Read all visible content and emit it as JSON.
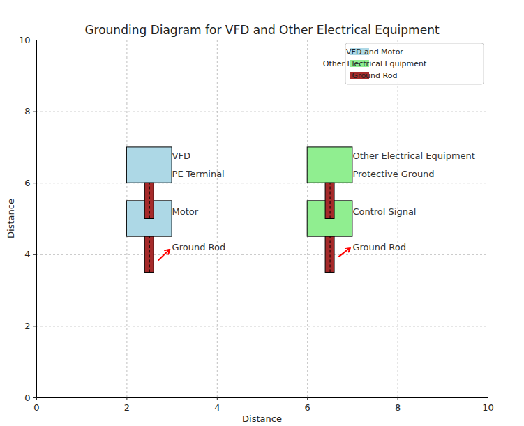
{
  "chart_data": {
    "type": "diagram",
    "title": "Grounding Diagram for VFD and Other Electrical Equipment",
    "x_label": "Distance",
    "y_label": "Distance",
    "xlim": [
      0,
      10
    ],
    "ylim": [
      0,
      10
    ],
    "xticks": [
      0,
      2,
      4,
      6,
      8,
      10
    ],
    "yticks": [
      0,
      2,
      4,
      6,
      8,
      10
    ],
    "grid": true,
    "legend": "upper right",
    "series": [
      {
        "name": "VFD and Motor",
        "color": "#add8e6",
        "rects": [
          {
            "x": [
              2,
              3
            ],
            "y": [
              6,
              7
            ]
          },
          {
            "x": [
              2,
              3
            ],
            "y": [
              4.5,
              5.5
            ]
          }
        ]
      },
      {
        "name": "Other Electrical Equipment",
        "color": "#90ee90",
        "rects": [
          {
            "x": [
              6,
              7
            ],
            "y": [
              6,
              7
            ]
          },
          {
            "x": [
              6,
              7
            ],
            "y": [
              4.5,
              5.5
            ]
          }
        ]
      },
      {
        "name": "Ground Rod",
        "color": "#a52a2a",
        "line_style": "dashed",
        "rects": [
          {
            "x": [
              2.4,
              2.6
            ],
            "y": [
              5,
              6
            ]
          },
          {
            "x": [
              2.4,
              2.6
            ],
            "y": [
              3.5,
              4.5
            ]
          },
          {
            "x": [
              6.4,
              6.6
            ],
            "y": [
              5,
              6
            ]
          },
          {
            "x": [
              6.4,
              6.6
            ],
            "y": [
              3.5,
              4.5
            ]
          }
        ]
      }
    ],
    "annotations": [
      {
        "text": "VFD",
        "x": 3,
        "y": 6.75
      },
      {
        "text": "PE Terminal",
        "x": 3,
        "y": 6.25
      },
      {
        "text": "Motor",
        "x": 3,
        "y": 5.2
      },
      {
        "text": "Ground Rod",
        "x": 3,
        "y": 4.2
      },
      {
        "text": "Other Electrical Equipment",
        "x": 7,
        "y": 6.75
      },
      {
        "text": "Protective Ground",
        "x": 7,
        "y": 6.25
      },
      {
        "text": "Control Signal",
        "x": 7,
        "y": 5.2
      },
      {
        "text": "Ground Rod",
        "x": 7,
        "y": 4.2
      }
    ],
    "arrows": [
      {
        "x": [
          2.7,
          2.95
        ],
        "y": [
          3.85,
          4.15
        ],
        "color": "red"
      },
      {
        "x": [
          6.7,
          6.95
        ],
        "y": [
          3.95,
          4.2
        ],
        "color": "red"
      }
    ]
  }
}
